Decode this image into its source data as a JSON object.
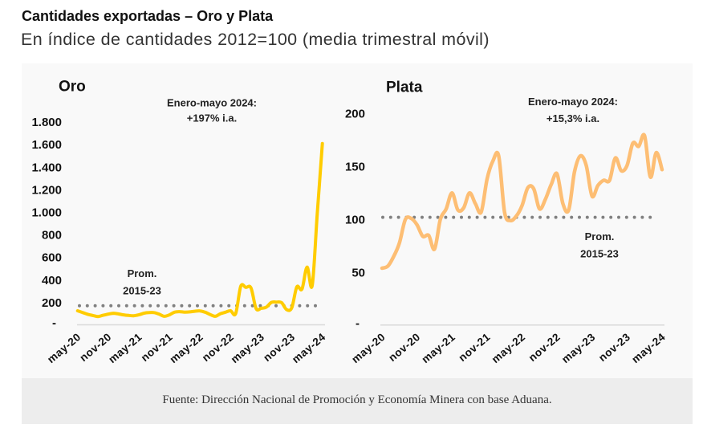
{
  "header": {
    "title": "Cantidades exportadas – Oro y Plata",
    "subtitle": "En índice de cantidades 2012=100 (media trimestral móvil)"
  },
  "footer": {
    "source": "Fuente: Dirección Nacional de Promoción y Economía Minera con base Aduana."
  },
  "chart_data": [
    {
      "type": "line",
      "title": "Oro",
      "xlabel": "",
      "ylabel": "",
      "x_range": [
        "may-20",
        "may-24"
      ],
      "frequency": "monthly",
      "x_tick_labels": [
        "may-20",
        "nov-20",
        "may-21",
        "nov-21",
        "may-22",
        "nov-22",
        "may-23",
        "nov-23",
        "may-24"
      ],
      "ylim": [
        0,
        1800
      ],
      "y_ticks": [
        0,
        200,
        400,
        600,
        800,
        1000,
        1200,
        1400,
        1600,
        1800
      ],
      "y_tick_labels": [
        "-",
        "200",
        "400",
        "600",
        "800",
        "1.000",
        "1.200",
        "1.400",
        "1.600",
        "1.800"
      ],
      "grid": false,
      "legend": "none",
      "series": [
        {
          "name": "Oro",
          "color": "#FFCC00",
          "values": [
            128,
            112,
            97,
            86,
            77,
            88,
            98,
            106,
            100,
            92,
            87,
            84,
            92,
            106,
            112,
            112,
            98,
            79,
            92,
            115,
            120,
            116,
            118,
            124,
            127,
            115,
            95,
            79,
            102,
            115,
            128,
            103,
            345,
            335,
            331,
            148,
            150,
            160,
            202,
            205,
            200,
            138,
            155,
            340,
            320,
            515,
            350,
            985,
            1610
          ]
        }
      ],
      "reference_line": {
        "value": 173,
        "label": [
          "Prom.",
          "2015-23"
        ],
        "color": "#808080",
        "style": "dotted"
      },
      "annotation": [
        "Enero-mayo 2024:",
        "+197% i.a."
      ]
    },
    {
      "type": "line",
      "title": "Plata",
      "xlabel": "",
      "ylabel": "",
      "x_range": [
        "may-20",
        "may-24"
      ],
      "frequency": "monthly",
      "x_tick_labels": [
        "may-20",
        "nov-20",
        "may-21",
        "nov-21",
        "may-22",
        "nov-22",
        "may-23",
        "nov-23",
        "may-24"
      ],
      "ylim": [
        0,
        200
      ],
      "y_ticks": [
        0,
        50,
        100,
        150,
        200
      ],
      "y_tick_labels": [
        "-",
        "50",
        "100",
        "150",
        "200"
      ],
      "grid": false,
      "legend": "none",
      "series": [
        {
          "name": "Plata",
          "color": "#FDBE74",
          "values": [
            54,
            56,
            65,
            78,
            100,
            101,
            95,
            84,
            85,
            72,
            100,
            110,
            125,
            109,
            111,
            125,
            115,
            107,
            138,
            155,
            160,
            107,
            99,
            103,
            113,
            130,
            129,
            110,
            119,
            133,
            143,
            115,
            109,
            145,
            160,
            151,
            122,
            132,
            137,
            137,
            158,
            146,
            151,
            172,
            169,
            179,
            140,
            163,
            147
          ]
        }
      ],
      "reference_line": {
        "value": 102,
        "label": [
          "Prom.",
          "2015-23"
        ],
        "color": "#808080",
        "style": "dotted"
      },
      "annotation": [
        "Enero-mayo 2024:",
        "+15,3% i.a."
      ]
    }
  ]
}
